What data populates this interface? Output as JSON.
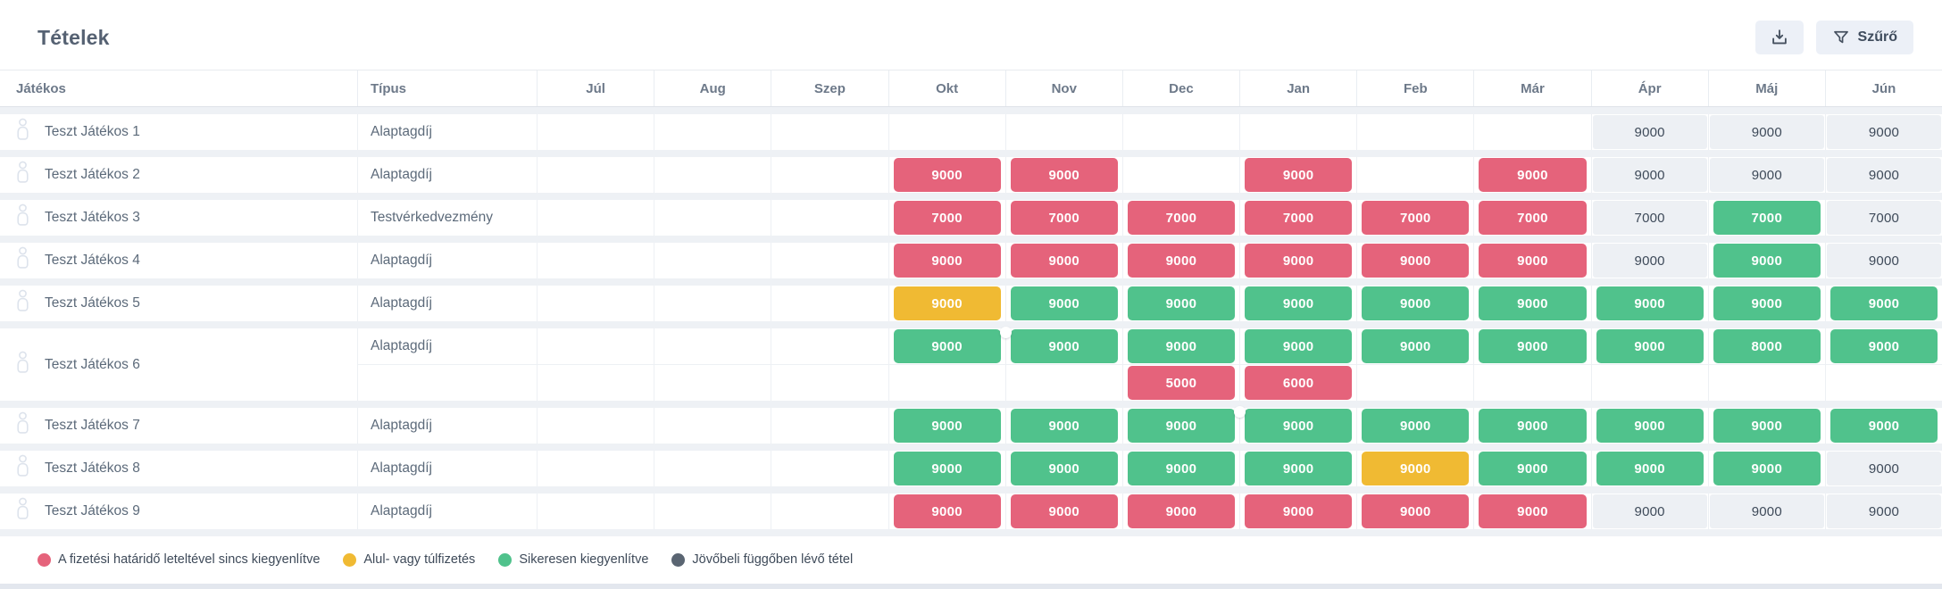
{
  "title": "Tételek",
  "toolbar": {
    "filter_label": "Szűrő"
  },
  "colors": {
    "red": "#e5637b",
    "yellow": "#f0ba33",
    "green": "#50c28c",
    "future_bg": "#edf0f4",
    "legend_dark": "#5a6572"
  },
  "table": {
    "player_header": "Játékos",
    "type_header": "Típus",
    "months": [
      "Júl",
      "Aug",
      "Szep",
      "Okt",
      "Nov",
      "Dec",
      "Jan",
      "Feb",
      "Már",
      "Ápr",
      "Máj",
      "Jún"
    ],
    "rows": [
      {
        "player": "Teszt Játékos 1",
        "lines": [
          {
            "type": "Alaptagdíj",
            "cells": [
              null,
              null,
              null,
              null,
              null,
              null,
              null,
              null,
              null,
              {
                "v": "9000",
                "s": "future"
              },
              {
                "v": "9000",
                "s": "future"
              },
              {
                "v": "9000",
                "s": "future"
              }
            ]
          }
        ]
      },
      {
        "player": "Teszt Játékos 2",
        "lines": [
          {
            "type": "Alaptagdíj",
            "cells": [
              null,
              null,
              null,
              {
                "v": "9000",
                "s": "red"
              },
              {
                "v": "9000",
                "s": "red"
              },
              null,
              {
                "v": "9000",
                "s": "red"
              },
              null,
              {
                "v": "9000",
                "s": "red"
              },
              {
                "v": "9000",
                "s": "future"
              },
              {
                "v": "9000",
                "s": "future"
              },
              {
                "v": "9000",
                "s": "future"
              }
            ]
          }
        ]
      },
      {
        "player": "Teszt Játékos 3",
        "lines": [
          {
            "type": "Testvérkedvezmény",
            "cells": [
              null,
              null,
              null,
              {
                "v": "7000",
                "s": "red"
              },
              {
                "v": "7000",
                "s": "red"
              },
              {
                "v": "7000",
                "s": "red"
              },
              {
                "v": "7000",
                "s": "red"
              },
              {
                "v": "7000",
                "s": "red"
              },
              {
                "v": "7000",
                "s": "red"
              },
              {
                "v": "7000",
                "s": "future"
              },
              {
                "v": "7000",
                "s": "green"
              },
              {
                "v": "7000",
                "s": "future"
              }
            ]
          }
        ]
      },
      {
        "player": "Teszt Játékos 4",
        "lines": [
          {
            "type": "Alaptagdíj",
            "cells": [
              null,
              null,
              null,
              {
                "v": "9000",
                "s": "red"
              },
              {
                "v": "9000",
                "s": "red"
              },
              {
                "v": "9000",
                "s": "red"
              },
              {
                "v": "9000",
                "s": "red"
              },
              {
                "v": "9000",
                "s": "red"
              },
              {
                "v": "9000",
                "s": "red"
              },
              {
                "v": "9000",
                "s": "future"
              },
              {
                "v": "9000",
                "s": "green"
              },
              {
                "v": "9000",
                "s": "future"
              }
            ]
          }
        ]
      },
      {
        "player": "Teszt Játékos 5",
        "lines": [
          {
            "type": "Alaptagdíj",
            "cells": [
              null,
              null,
              null,
              {
                "v": "9000",
                "s": "yellow"
              },
              {
                "v": "9000",
                "s": "green"
              },
              {
                "v": "9000",
                "s": "green"
              },
              {
                "v": "9000",
                "s": "green"
              },
              {
                "v": "9000",
                "s": "green"
              },
              {
                "v": "9000",
                "s": "green"
              },
              {
                "v": "9000",
                "s": "green"
              },
              {
                "v": "9000",
                "s": "green"
              },
              {
                "v": "9000",
                "s": "green"
              }
            ]
          }
        ]
      },
      {
        "player": "Teszt Játékos 6",
        "lines": [
          {
            "type": "Alaptagdíj",
            "cells": [
              null,
              null,
              null,
              {
                "v": "9000",
                "s": "green",
                "dot": true
              },
              {
                "v": "9000",
                "s": "green"
              },
              {
                "v": "9000",
                "s": "green"
              },
              {
                "v": "9000",
                "s": "green"
              },
              {
                "v": "9000",
                "s": "green"
              },
              {
                "v": "9000",
                "s": "green"
              },
              {
                "v": "9000",
                "s": "green"
              },
              {
                "v": "8000",
                "s": "green"
              },
              {
                "v": "9000",
                "s": "green"
              }
            ]
          },
          {
            "type": "",
            "cells": [
              null,
              null,
              null,
              null,
              null,
              {
                "v": "5000",
                "s": "red"
              },
              {
                "v": "6000",
                "s": "red"
              },
              null,
              null,
              null,
              null,
              null
            ]
          }
        ]
      },
      {
        "player": "Teszt Játékos 7",
        "lines": [
          {
            "type": "Alaptagdíj",
            "cells": [
              null,
              null,
              null,
              {
                "v": "9000",
                "s": "green"
              },
              {
                "v": "9000",
                "s": "green"
              },
              {
                "v": "9000",
                "s": "green",
                "dot": true
              },
              {
                "v": "9000",
                "s": "green"
              },
              {
                "v": "9000",
                "s": "green"
              },
              {
                "v": "9000",
                "s": "green"
              },
              {
                "v": "9000",
                "s": "green"
              },
              {
                "v": "9000",
                "s": "green"
              },
              {
                "v": "9000",
                "s": "green"
              }
            ]
          }
        ]
      },
      {
        "player": "Teszt Játékos 8",
        "lines": [
          {
            "type": "Alaptagdíj",
            "cells": [
              null,
              null,
              null,
              {
                "v": "9000",
                "s": "green"
              },
              {
                "v": "9000",
                "s": "green"
              },
              {
                "v": "9000",
                "s": "green"
              },
              {
                "v": "9000",
                "s": "green"
              },
              {
                "v": "9000",
                "s": "yellow"
              },
              {
                "v": "9000",
                "s": "green"
              },
              {
                "v": "9000",
                "s": "green"
              },
              {
                "v": "9000",
                "s": "green"
              },
              {
                "v": "9000",
                "s": "future"
              }
            ]
          }
        ]
      },
      {
        "player": "Teszt Játékos 9",
        "lines": [
          {
            "type": "Alaptagdíj",
            "cells": [
              null,
              null,
              null,
              {
                "v": "9000",
                "s": "red"
              },
              {
                "v": "9000",
                "s": "red"
              },
              {
                "v": "9000",
                "s": "red"
              },
              {
                "v": "9000",
                "s": "red"
              },
              {
                "v": "9000",
                "s": "red"
              },
              {
                "v": "9000",
                "s": "red"
              },
              {
                "v": "9000",
                "s": "future"
              },
              {
                "v": "9000",
                "s": "future"
              },
              {
                "v": "9000",
                "s": "future"
              }
            ]
          }
        ]
      }
    ]
  },
  "legend": [
    {
      "color": "#e5637b",
      "label": "A fizetési határidő leteltével sincs kiegyenlítve"
    },
    {
      "color": "#f0ba33",
      "label": "Alul- vagy túlfizetés"
    },
    {
      "color": "#50c28c",
      "label": "Sikeresen kiegyenlítve"
    },
    {
      "color": "#5a6572",
      "label": "Jövőbeli függőben lévő tétel"
    }
  ]
}
